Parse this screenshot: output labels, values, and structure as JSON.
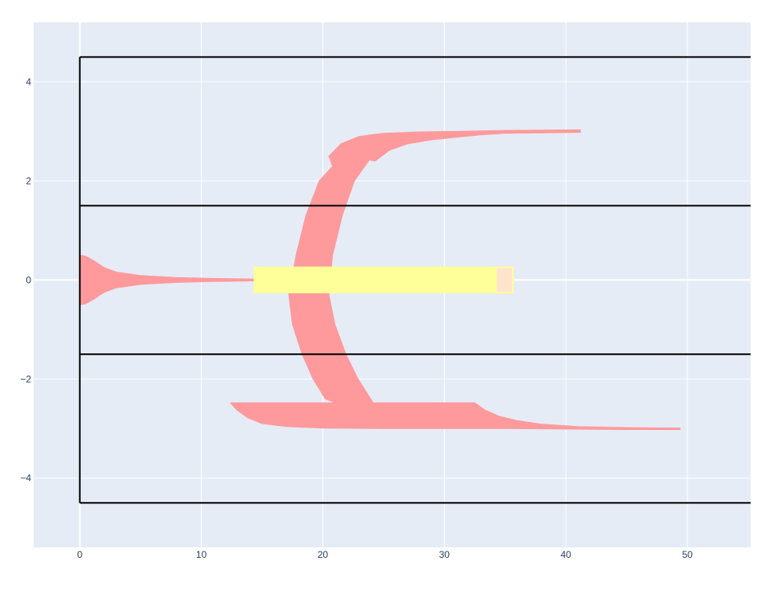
{
  "chart_data": {
    "type": "area",
    "title": "",
    "xlabel": "",
    "ylabel": "",
    "xlim": [
      -3.8,
      55.2
    ],
    "ylim": [
      -5.4,
      5.2
    ],
    "x_ticks": [
      0,
      10,
      20,
      30,
      40,
      50
    ],
    "y_ticks": [
      -4,
      -2,
      0,
      2,
      4
    ],
    "grid": true,
    "colors": {
      "plot_bg": "#e5ecf6",
      "grid": "#ffffff",
      "lane_lines": "#000000",
      "trajectory": "#ff9a9c",
      "vehicle": "#ffff99",
      "vehicle_front": "#ffe4cc"
    },
    "lane_boundaries": [
      {
        "name": "road-top",
        "y": 4.5,
        "x_start": 0
      },
      {
        "name": "lane-divider-upper",
        "y": 1.5,
        "x_start": 0
      },
      {
        "name": "lane-divider-lower",
        "y": -1.5,
        "x_start": 0
      },
      {
        "name": "road-bottom",
        "y": -4.5,
        "x_start": 0
      }
    ],
    "road_start_x": 0,
    "vehicle": {
      "x": [
        14.3,
        35.7
      ],
      "y": [
        -0.27,
        0.27
      ],
      "front_x": 34.3
    },
    "regions": [
      {
        "name": "center-taper",
        "upper": [
          [
            0,
            0.5
          ],
          [
            0.5,
            0.48
          ],
          [
            1.2,
            0.38
          ],
          [
            2,
            0.25
          ],
          [
            3,
            0.16
          ],
          [
            5,
            0.09
          ],
          [
            8,
            0.05
          ],
          [
            11,
            0.03
          ],
          [
            14.3,
            0.02
          ]
        ],
        "lower": [
          [
            0,
            -0.5
          ],
          [
            0.5,
            -0.48
          ],
          [
            1.2,
            -0.38
          ],
          [
            2,
            -0.25
          ],
          [
            3,
            -0.16
          ],
          [
            5,
            -0.09
          ],
          [
            8,
            -0.05
          ],
          [
            11,
            -0.03
          ],
          [
            14.3,
            -0.02
          ]
        ]
      },
      {
        "name": "upper-branch",
        "polygon": [
          [
            20.5,
            2.5
          ],
          [
            21.5,
            2.75
          ],
          [
            23,
            2.9
          ],
          [
            25,
            2.96
          ],
          [
            28,
            2.99
          ],
          [
            31,
            3.0
          ],
          [
            35,
            3.02
          ],
          [
            41.2,
            3.03
          ],
          [
            41.2,
            2.98
          ],
          [
            38,
            2.97
          ],
          [
            35,
            2.96
          ],
          [
            33,
            2.93
          ],
          [
            31,
            2.88
          ],
          [
            29,
            2.83
          ],
          [
            27,
            2.75
          ],
          [
            25.5,
            2.62
          ],
          [
            24.3,
            2.4
          ],
          [
            23.3,
            2.45
          ],
          [
            22.5,
            2.2
          ],
          [
            21.2,
            2.0
          ]
        ]
      },
      {
        "name": "crossing-band",
        "left": [
          [
            21.2,
            2.4
          ],
          [
            19.7,
            2.0
          ],
          [
            18.6,
            1.3
          ],
          [
            17.8,
            0.5
          ],
          [
            17.2,
            -0.3
          ],
          [
            17.5,
            -0.9
          ],
          [
            18.3,
            -1.5
          ],
          [
            19.2,
            -2.0
          ],
          [
            20.2,
            -2.4
          ],
          [
            21.2,
            -2.5
          ]
        ],
        "right": [
          [
            23.9,
            2.45
          ],
          [
            22.6,
            2.0
          ],
          [
            21.6,
            1.3
          ],
          [
            20.8,
            0.5
          ],
          [
            20.5,
            -0.3
          ],
          [
            21.0,
            -0.9
          ],
          [
            21.9,
            -1.5
          ],
          [
            22.9,
            -2.0
          ],
          [
            24.2,
            -2.5
          ]
        ]
      },
      {
        "name": "lower-branch",
        "polygon": [
          [
            12.4,
            -2.48
          ],
          [
            32.5,
            -2.48
          ],
          [
            33.3,
            -2.62
          ],
          [
            34.5,
            -2.75
          ],
          [
            36,
            -2.84
          ],
          [
            38,
            -2.91
          ],
          [
            41,
            -2.96
          ],
          [
            45,
            -2.98
          ],
          [
            49.4,
            -2.99
          ],
          [
            49.4,
            -3.02
          ],
          [
            45,
            -3.02
          ],
          [
            40,
            -3.01
          ],
          [
            35,
            -3.0
          ],
          [
            30,
            -3.0
          ],
          [
            25,
            -3.0
          ],
          [
            20,
            -2.99
          ],
          [
            17,
            -2.96
          ],
          [
            15,
            -2.9
          ],
          [
            13.8,
            -2.78
          ],
          [
            12.9,
            -2.62
          ]
        ]
      }
    ]
  }
}
